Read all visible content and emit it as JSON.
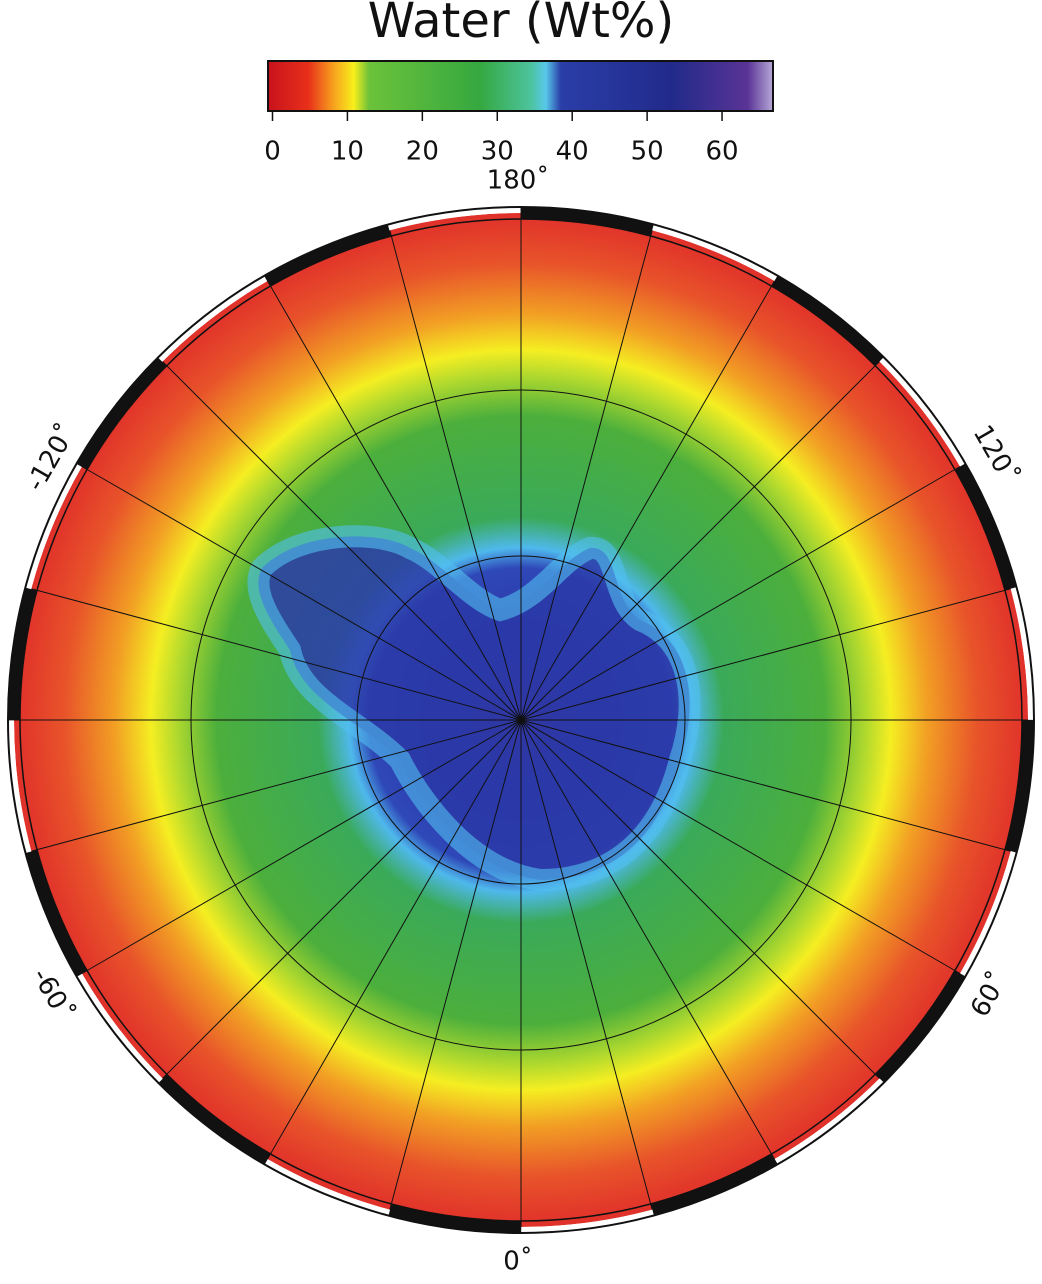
{
  "title": "Water (Wt%)",
  "colorbar": {
    "lim": [
      -0.6,
      66.8
    ],
    "ticks": [
      0,
      10,
      20,
      30,
      40,
      50,
      60
    ]
  },
  "longitude_labels": [
    "180˚",
    "120˚",
    "-120˚",
    "60˚",
    "-60˚",
    "0˚"
  ]
}
